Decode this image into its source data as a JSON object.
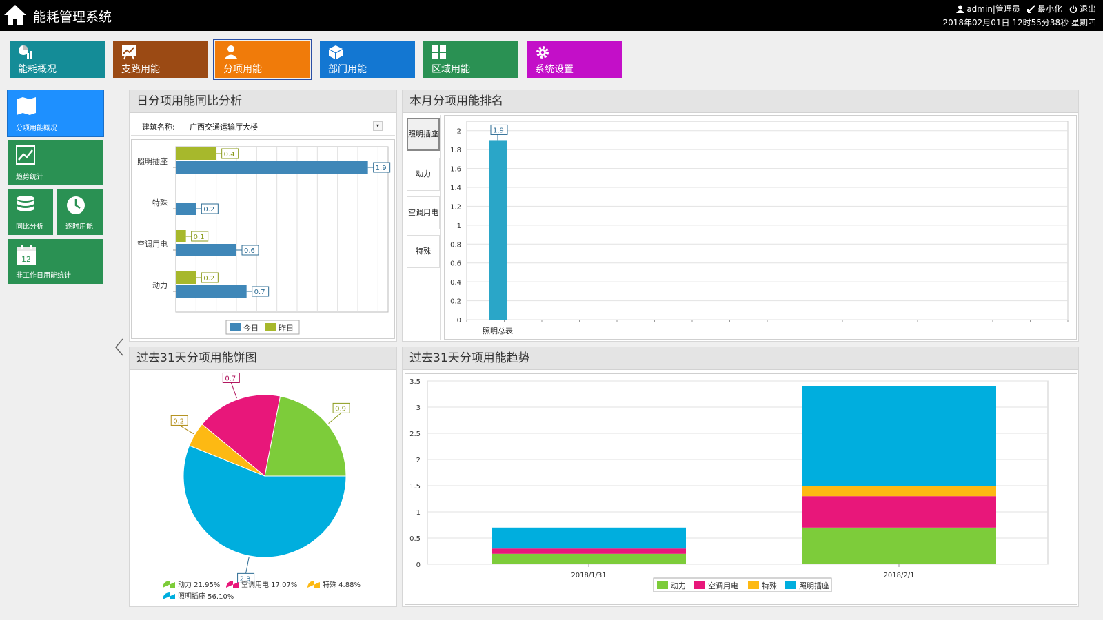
{
  "app": {
    "title": "能耗管理系统",
    "user": "admin|管理员",
    "minimize": "最小化",
    "logout": "退出",
    "datetime": "2018年02月01日 12时55分38秒 星期四"
  },
  "nav": [
    {
      "label": "能耗概况",
      "color": "#148c97",
      "icon": "chart-pie-icon"
    },
    {
      "label": "支路用能",
      "color": "#9b4a14",
      "icon": "presentation-chart-icon"
    },
    {
      "label": "分项用能",
      "color": "#f07b0a",
      "icon": "person-icon",
      "active": true
    },
    {
      "label": "部门用能",
      "color": "#1377d2",
      "icon": "cube-icon"
    },
    {
      "label": "区域用能",
      "color": "#2a9153",
      "icon": "grid-icon"
    },
    {
      "label": "系统设置",
      "color": "#c30fc8",
      "icon": "gear-icon"
    }
  ],
  "side": [
    {
      "label": "分项用能概况",
      "color": "#1e90ff",
      "icon": "map-icon",
      "active": true
    },
    {
      "label": "趋势统计",
      "color": "#2a9153",
      "icon": "trend-icon"
    },
    {
      "label": "同比分析",
      "color": "#2a9153",
      "icon": "database-icon"
    },
    {
      "label": "逐时用能",
      "color": "#2a9153",
      "icon": "clock-icon"
    },
    {
      "label": "非工作日用能统计",
      "color": "#2a9153",
      "icon": "calendar-icon",
      "icon_text": "12"
    }
  ],
  "panels": {
    "daily": {
      "title": "日分项用能同比分析",
      "building_label": "建筑名称:",
      "building_value": "广西交通运输厅大楼"
    },
    "ranking": {
      "title": "本月分项用能排名",
      "tabs": [
        "照明插座",
        "动力",
        "空调用电",
        "特殊"
      ]
    },
    "pie": {
      "title": "过去31天分项用能饼图"
    },
    "trend": {
      "title": "过去31天分项用能趋势"
    }
  },
  "colors": {
    "today": "#3f87b8",
    "yesterday": "#a7b82c",
    "power": "#7dcc3a",
    "ac": "#e8177a",
    "special": "#fdb913",
    "light": "#00aede",
    "rank_bar": "#2aa6c8"
  },
  "chart_data": [
    {
      "id": "daily",
      "type": "bar",
      "orientation": "horizontal",
      "categories": [
        "照明插座",
        "特殊",
        "空调用电",
        "动力"
      ],
      "series": [
        {
          "name": "今日",
          "values": [
            1.9,
            0.2,
            0.6,
            0.7
          ]
        },
        {
          "name": "昨日",
          "values": [
            0.4,
            null,
            0.1,
            0.2
          ]
        }
      ],
      "xlim": [
        0,
        2.1
      ],
      "legend": "bottom"
    },
    {
      "id": "ranking",
      "type": "bar",
      "categories": [
        "照明总表"
      ],
      "values": [
        1.9
      ],
      "ylim": [
        0,
        2.1
      ],
      "yticks": [
        0,
        0.2,
        0.4,
        0.6,
        0.8,
        1,
        1.2,
        1.4,
        1.6,
        1.8,
        2
      ]
    },
    {
      "id": "pie",
      "type": "pie",
      "labels": [
        "动力",
        "空调用电",
        "特殊",
        "照明插座"
      ],
      "values": [
        0.9,
        0.7,
        0.2,
        2.3
      ],
      "percents": [
        "21.95%",
        "17.07%",
        "4.88%",
        "56.10%"
      ],
      "legend": "bottom"
    },
    {
      "id": "trend",
      "type": "bar",
      "stacked": true,
      "categories": [
        "2018/1/31",
        "2018/2/1"
      ],
      "series": [
        {
          "name": "动力",
          "values": [
            0.2,
            0.7
          ]
        },
        {
          "name": "空调用电",
          "values": [
            0.1,
            0.6
          ]
        },
        {
          "name": "特殊",
          "values": [
            0.0,
            0.2
          ]
        },
        {
          "name": "照明插座",
          "values": [
            0.4,
            1.9
          ]
        }
      ],
      "ylim": [
        0,
        3.5
      ],
      "yticks": [
        0,
        0.5,
        1,
        1.5,
        2,
        2.5,
        3,
        3.5
      ],
      "legend": "bottom"
    }
  ]
}
